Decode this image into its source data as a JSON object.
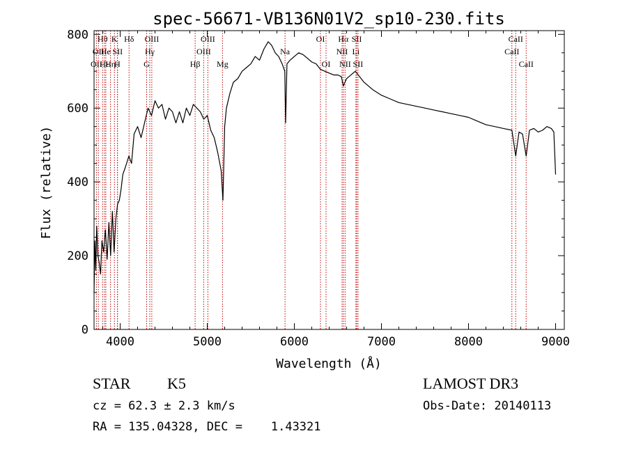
{
  "chart_data": {
    "type": "line",
    "title": "spec-56671-VB136N01V2_sp10-230.fits",
    "xlabel": "Wavelength (Å)",
    "ylabel": "Flux (relative)",
    "xlim": [
      3700,
      9100
    ],
    "ylim": [
      0,
      810
    ],
    "xticks": [
      4000,
      5000,
      6000,
      7000,
      8000,
      9000
    ],
    "yticks": [
      0,
      200,
      400,
      600,
      800
    ],
    "grid": false,
    "series": [
      {
        "x": [
          3700,
          3710,
          3720,
          3730,
          3745,
          3760,
          3775,
          3790,
          3810,
          3830,
          3850,
          3870,
          3890,
          3910,
          3930,
          3950,
          3970,
          3990,
          4010,
          4030,
          4060,
          4100,
          4130,
          4160,
          4200,
          4240,
          4280,
          4320,
          4360,
          4400,
          4440,
          4480,
          4520,
          4560,
          4600,
          4640,
          4680,
          4720,
          4760,
          4800,
          4840,
          4880,
          4920,
          4960,
          5000,
          5040,
          5080,
          5120,
          5160,
          5180,
          5200,
          5220,
          5260,
          5300,
          5350,
          5400,
          5450,
          5500,
          5550,
          5600,
          5650,
          5700,
          5740,
          5780,
          5820,
          5860,
          5890,
          5900,
          5915,
          5950,
          6000,
          6050,
          6100,
          6150,
          6200,
          6250,
          6300,
          6350,
          6400,
          6450,
          6500,
          6540,
          6563,
          6600,
          6650,
          6700,
          6750,
          6800,
          6900,
          7000,
          7100,
          7200,
          7300,
          7400,
          7500,
          7600,
          7700,
          7800,
          7900,
          8000,
          8100,
          8200,
          8300,
          8400,
          8498,
          8542,
          8580,
          8620,
          8662,
          8700,
          8750,
          8800,
          8850,
          8900,
          8950,
          8980,
          9000
        ],
        "y": [
          100,
          240,
          160,
          280,
          200,
          180,
          150,
          240,
          210,
          270,
          190,
          290,
          200,
          320,
          210,
          300,
          340,
          350,
          380,
          420,
          440,
          470,
          450,
          530,
          550,
          520,
          560,
          600,
          580,
          620,
          600,
          610,
          570,
          600,
          590,
          560,
          590,
          560,
          600,
          580,
          610,
          600,
          590,
          570,
          580,
          540,
          520,
          480,
          430,
          350,
          550,
          600,
          640,
          670,
          680,
          700,
          710,
          720,
          740,
          730,
          760,
          780,
          770,
          750,
          740,
          720,
          700,
          560,
          720,
          730,
          740,
          750,
          745,
          735,
          725,
          720,
          705,
          700,
          695,
          690,
          690,
          685,
          660,
          680,
          690,
          700,
          685,
          670,
          650,
          635,
          625,
          615,
          610,
          605,
          600,
          595,
          590,
          585,
          580,
          575,
          565,
          555,
          550,
          545,
          540,
          470,
          535,
          530,
          470,
          540,
          545,
          535,
          540,
          550,
          545,
          535,
          420
        ]
      }
    ],
    "line_markers": [
      {
        "wavelength": 3727,
        "label": "OII",
        "row": 2
      },
      {
        "wavelength": 3750,
        "label": "OII",
        "row": 1
      },
      {
        "wavelength": 3798,
        "label": "Hθ",
        "row": 0
      },
      {
        "wavelength": 3820,
        "label": "Hε",
        "row": 2
      },
      {
        "wavelength": 3835,
        "label": "He",
        "row": 1
      },
      {
        "wavelength": 3889,
        "label": "Hη",
        "row": 2
      },
      {
        "wavelength": 3934,
        "label": "K",
        "row": 0
      },
      {
        "wavelength": 3970,
        "label": "SII",
        "row": 1
      },
      {
        "wavelength": 3968,
        "label": "H",
        "row": 2
      },
      {
        "wavelength": 4102,
        "label": "Hδ",
        "row": 0
      },
      {
        "wavelength": 4304,
        "label": "G",
        "row": 2
      },
      {
        "wavelength": 4340,
        "label": "Hγ",
        "row": 1
      },
      {
        "wavelength": 4363,
        "label": "OIII",
        "row": 0
      },
      {
        "wavelength": 4861,
        "label": "Hβ",
        "row": 2
      },
      {
        "wavelength": 4959,
        "label": "OIII",
        "row": 1
      },
      {
        "wavelength": 5007,
        "label": "OIII",
        "row": 0
      },
      {
        "wavelength": 5175,
        "label": "Mg",
        "row": 2
      },
      {
        "wavelength": 5893,
        "label": "Na",
        "row": 1
      },
      {
        "wavelength": 6300,
        "label": "OI",
        "row": 0
      },
      {
        "wavelength": 6364,
        "label": "OI",
        "row": 2
      },
      {
        "wavelength": 6548,
        "label": "NII",
        "row": 1
      },
      {
        "wavelength": 6563,
        "label": "Hα",
        "row": 0
      },
      {
        "wavelength": 6583,
        "label": "NII",
        "row": 2
      },
      {
        "wavelength": 6707,
        "label": "Li",
        "row": 1
      },
      {
        "wavelength": 6716,
        "label": "SII",
        "row": 0
      },
      {
        "wavelength": 6731,
        "label": "SII",
        "row": 2
      },
      {
        "wavelength": 8498,
        "label": "CaII",
        "row": 1
      },
      {
        "wavelength": 8542,
        "label": "CaII",
        "row": 0
      },
      {
        "wavelength": 8662,
        "label": "CaII",
        "row": 2
      }
    ]
  },
  "info": {
    "object_class": "STAR",
    "subclass": "K5",
    "survey": "LAMOST DR3",
    "redshift": "cz = 62.3 ± 2.3 km/s",
    "obs_date": "Obs-Date: 20140113",
    "coords": "RA = 135.04328, DEC =    1.43321"
  },
  "colors": {
    "axis": "#000000",
    "spectrum": "#000000",
    "marker": "#c00000"
  }
}
